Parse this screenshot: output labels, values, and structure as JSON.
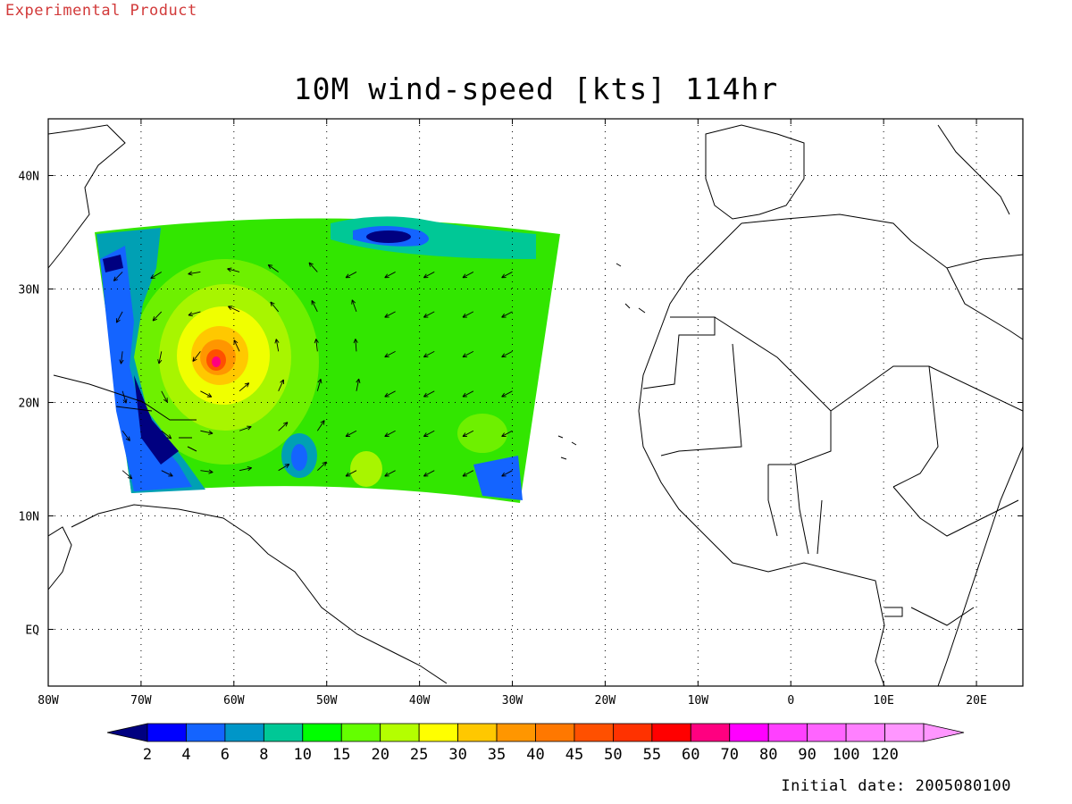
{
  "header": {
    "experimental_label": "Experimental Product",
    "title": "10M wind-speed [kts] 114hr",
    "initial_date": "Initial date: 2005080100"
  },
  "map": {
    "lon_range": [
      -80,
      25
    ],
    "lat_range": [
      -5,
      45
    ],
    "lon_ticks": [
      {
        "lon": -80,
        "label": "80W"
      },
      {
        "lon": -70,
        "label": "70W"
      },
      {
        "lon": -60,
        "label": "60W"
      },
      {
        "lon": -50,
        "label": "50W"
      },
      {
        "lon": -40,
        "label": "40W"
      },
      {
        "lon": -30,
        "label": "30W"
      },
      {
        "lon": -20,
        "label": "20W"
      },
      {
        "lon": -10,
        "label": "10W"
      },
      {
        "lon": 0,
        "label": "0"
      },
      {
        "lon": 10,
        "label": "10E"
      },
      {
        "lon": 20,
        "label": "20E"
      }
    ],
    "lat_ticks": [
      {
        "lat": 0,
        "label": "EQ"
      },
      {
        "lat": 10,
        "label": "10N"
      },
      {
        "lat": 20,
        "label": "20N"
      },
      {
        "lat": 30,
        "label": "30N"
      },
      {
        "lat": 40,
        "label": "40N"
      }
    ],
    "grid": "dotted"
  },
  "colorbar": {
    "labels": [
      "2",
      "4",
      "6",
      "8",
      "10",
      "15",
      "20",
      "25",
      "30",
      "35",
      "40",
      "45",
      "50",
      "55",
      "60",
      "70",
      "80",
      "90",
      "100",
      "120"
    ],
    "colors": [
      "#000080",
      "#0000ff",
      "#1464ff",
      "#0096c8",
      "#00c896",
      "#00ff00",
      "#64ff00",
      "#b4ff00",
      "#ffff00",
      "#ffc800",
      "#ff9600",
      "#ff7800",
      "#ff5000",
      "#ff3200",
      "#ff0000",
      "#ff0080",
      "#ff00ff",
      "#ff40ff",
      "#ff64ff",
      "#ff80ff",
      "#ff96ff"
    ]
  },
  "field": {
    "domain_lon": [
      -75,
      -25
    ],
    "domain_lat": [
      12,
      35
    ],
    "hurricane_center": {
      "lon": -62,
      "lat": 23.5,
      "max_kts": 60
    }
  }
}
